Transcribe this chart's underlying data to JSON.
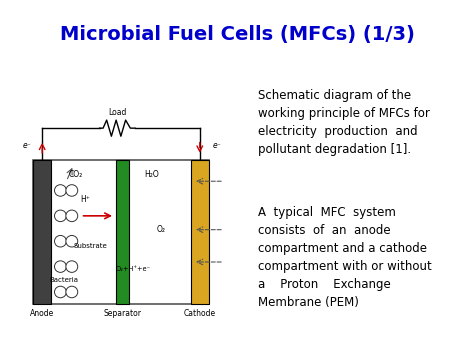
{
  "title": "Microbial Fuel Cells (MFCs) (1/3)",
  "title_color": "#0000CC",
  "title_fontsize": 14,
  "bg_color": "#FFFFFF",
  "paragraph1": "Schematic diagram of the\nworking principle of MFCs for\nelectricity  production  and\npollutant degradation [1].",
  "paragraph2": "A  typical  MFC  system\nconsists  of  an  anode\ncompartment and a cathode\ncompartment with or without\na    Proton    Exchange\nMembrane (PEM)",
  "text_fontsize": 8.5,
  "diagram": {
    "anode_color": "#404040",
    "separator_color": "#228B22",
    "cathode_color": "#DAA520",
    "arrow_color_red": "#CC0000",
    "label_anode": "Anode",
    "label_separator": "Separator",
    "label_cathode": "Cathode",
    "label_load": "Load",
    "label_eminus_left": "e⁻",
    "label_eminus_right": "e⁻"
  }
}
